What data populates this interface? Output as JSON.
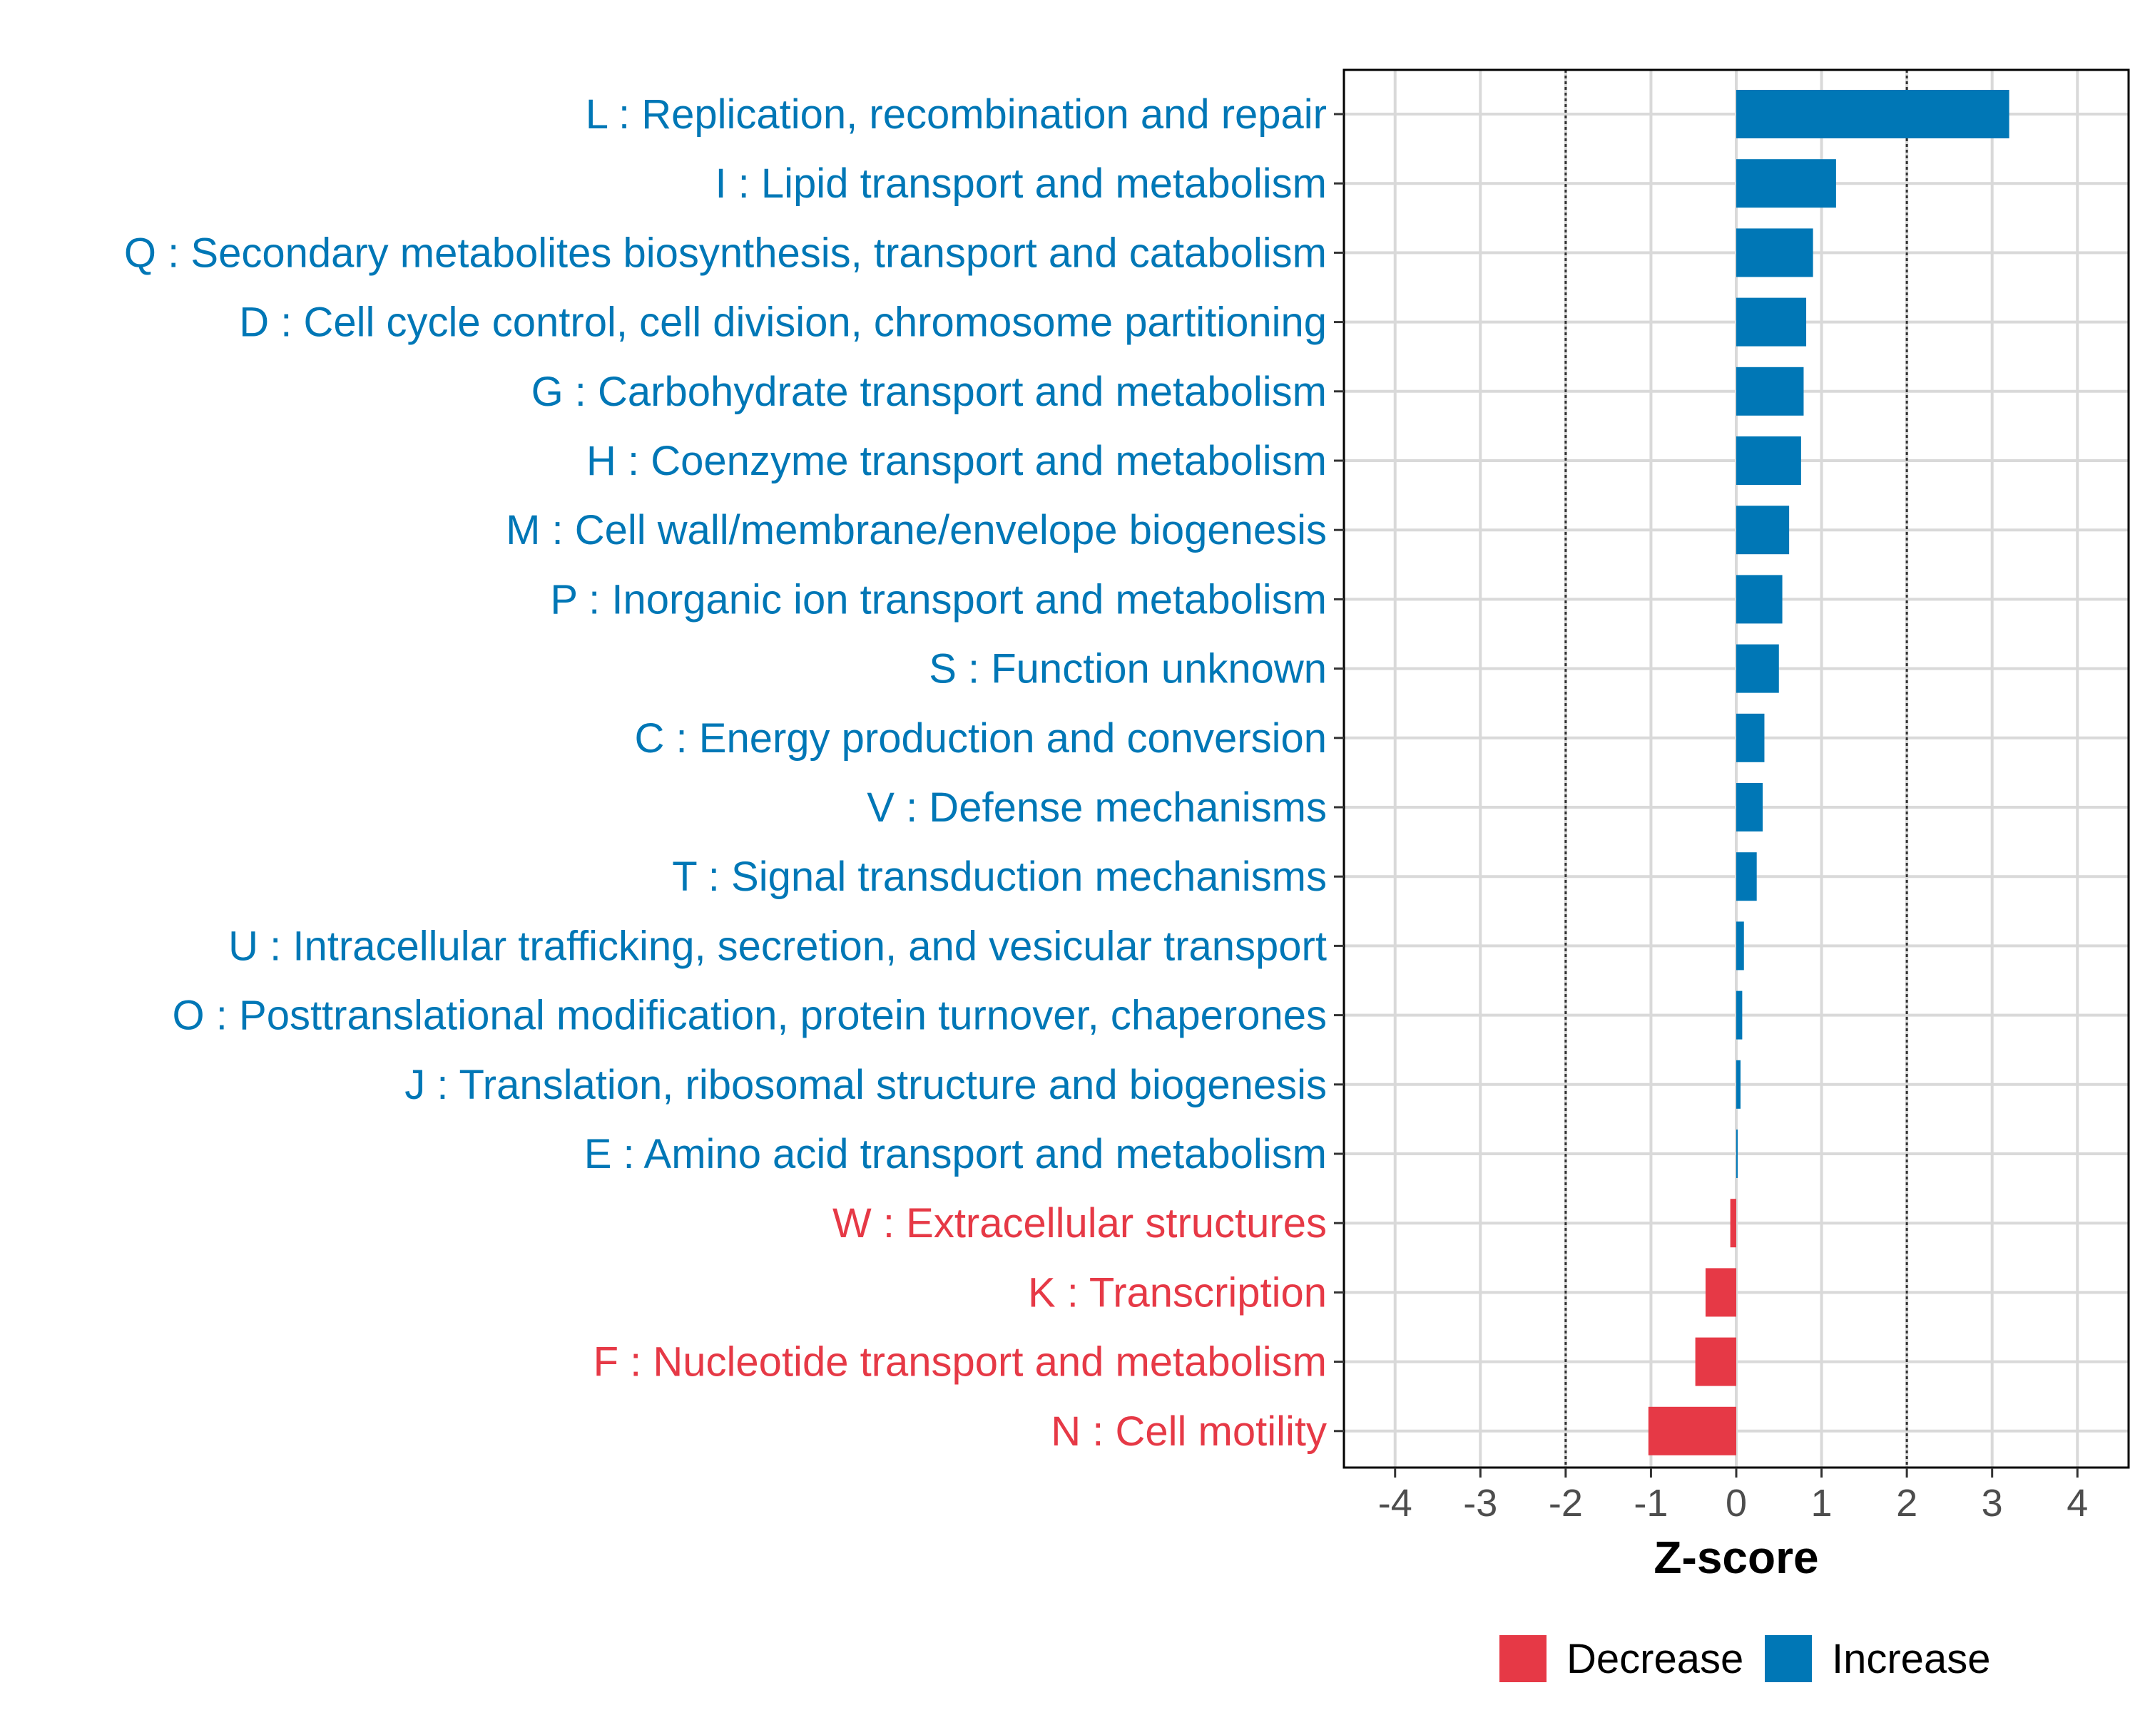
{
  "chart_data": {
    "type": "bar",
    "orientation": "horizontal",
    "xlabel": "Z-score",
    "ylabel": "",
    "xlim": [
      -4.6,
      4.6
    ],
    "xticks": [
      -4,
      -3,
      -2,
      -1,
      0,
      1,
      2,
      3,
      4
    ],
    "reference_lines": [
      -2,
      2
    ],
    "grid": true,
    "legend_position": "bottom-right",
    "categories": [
      "L : Replication, recombination and repair",
      "I : Lipid transport and metabolism",
      "Q : Secondary metabolites biosynthesis, transport and catabolism",
      "D : Cell cycle control, cell division, chromosome partitioning",
      "G : Carbohydrate transport and metabolism",
      "H : Coenzyme transport and metabolism",
      "M : Cell wall/membrane/envelope biogenesis",
      "P : Inorganic ion transport and metabolism",
      "S : Function unknown",
      "C : Energy production and conversion",
      "V : Defense mechanisms",
      "T : Signal transduction mechanisms",
      "U : Intracellular trafficking, secretion, and vesicular transport",
      "O : Posttranslational modification, protein turnover, chaperones",
      "J : Translation, ribosomal structure and biogenesis",
      "E : Amino acid transport and metabolism",
      "W : Extracellular structures",
      "K : Transcription",
      "F : Nucleotide transport and metabolism",
      "N : Cell motility"
    ],
    "values": [
      3.2,
      1.17,
      0.9,
      0.82,
      0.79,
      0.76,
      0.62,
      0.54,
      0.5,
      0.33,
      0.31,
      0.24,
      0.09,
      0.07,
      0.05,
      0.01,
      -0.07,
      -0.36,
      -0.48,
      -1.03
    ],
    "legend": [
      {
        "name": "Decrease",
        "color": "#e63946"
      },
      {
        "name": "Increase",
        "color": "#0077b6"
      }
    ]
  },
  "colors": {
    "increase": "#0077b6",
    "decrease": "#e63946",
    "grid": "#d9d9d9",
    "panel_border": "#000000"
  }
}
